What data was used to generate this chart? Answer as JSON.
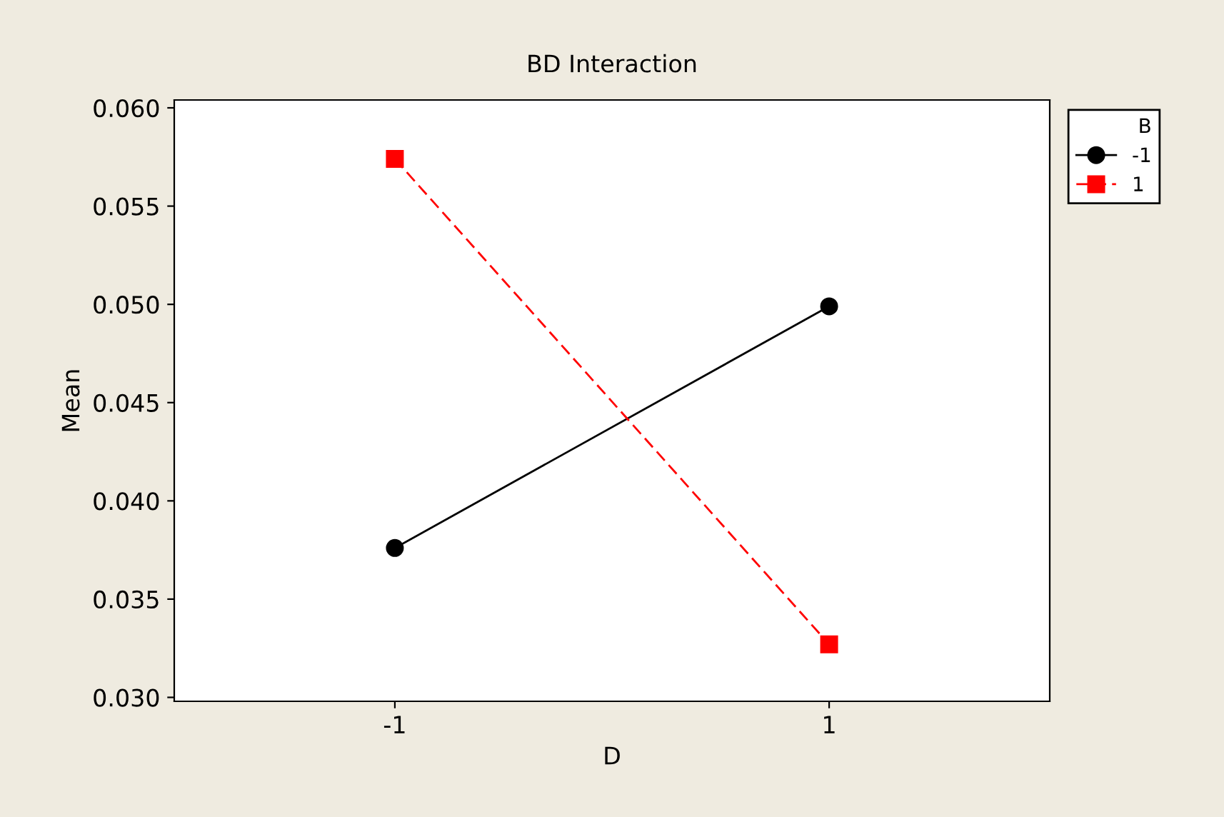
{
  "chart_data": {
    "type": "line",
    "title": "BD Interaction",
    "xlabel": "D",
    "ylabel": "Mean",
    "legend_title": "B",
    "categories": [
      "-1",
      "1"
    ],
    "series": [
      {
        "name": "-1",
        "color": "#000000",
        "marker": "circle",
        "line_style": "solid",
        "values": [
          0.0376,
          0.0499
        ]
      },
      {
        "name": "1",
        "color": "#ff0000",
        "marker": "square",
        "line_style": "dashed",
        "values": [
          0.0574,
          0.0327
        ]
      }
    ],
    "ylim": [
      0.0298,
      0.0604
    ],
    "yticks": [
      {
        "value": 0.03,
        "label": "0.030"
      },
      {
        "value": 0.035,
        "label": "0.035"
      },
      {
        "value": 0.04,
        "label": "0.040"
      },
      {
        "value": 0.045,
        "label": "0.045"
      },
      {
        "value": 0.05,
        "label": "0.050"
      },
      {
        "value": 0.055,
        "label": "0.055"
      },
      {
        "value": 0.06,
        "label": "0.060"
      }
    ],
    "grid": false,
    "legend": "top right"
  }
}
